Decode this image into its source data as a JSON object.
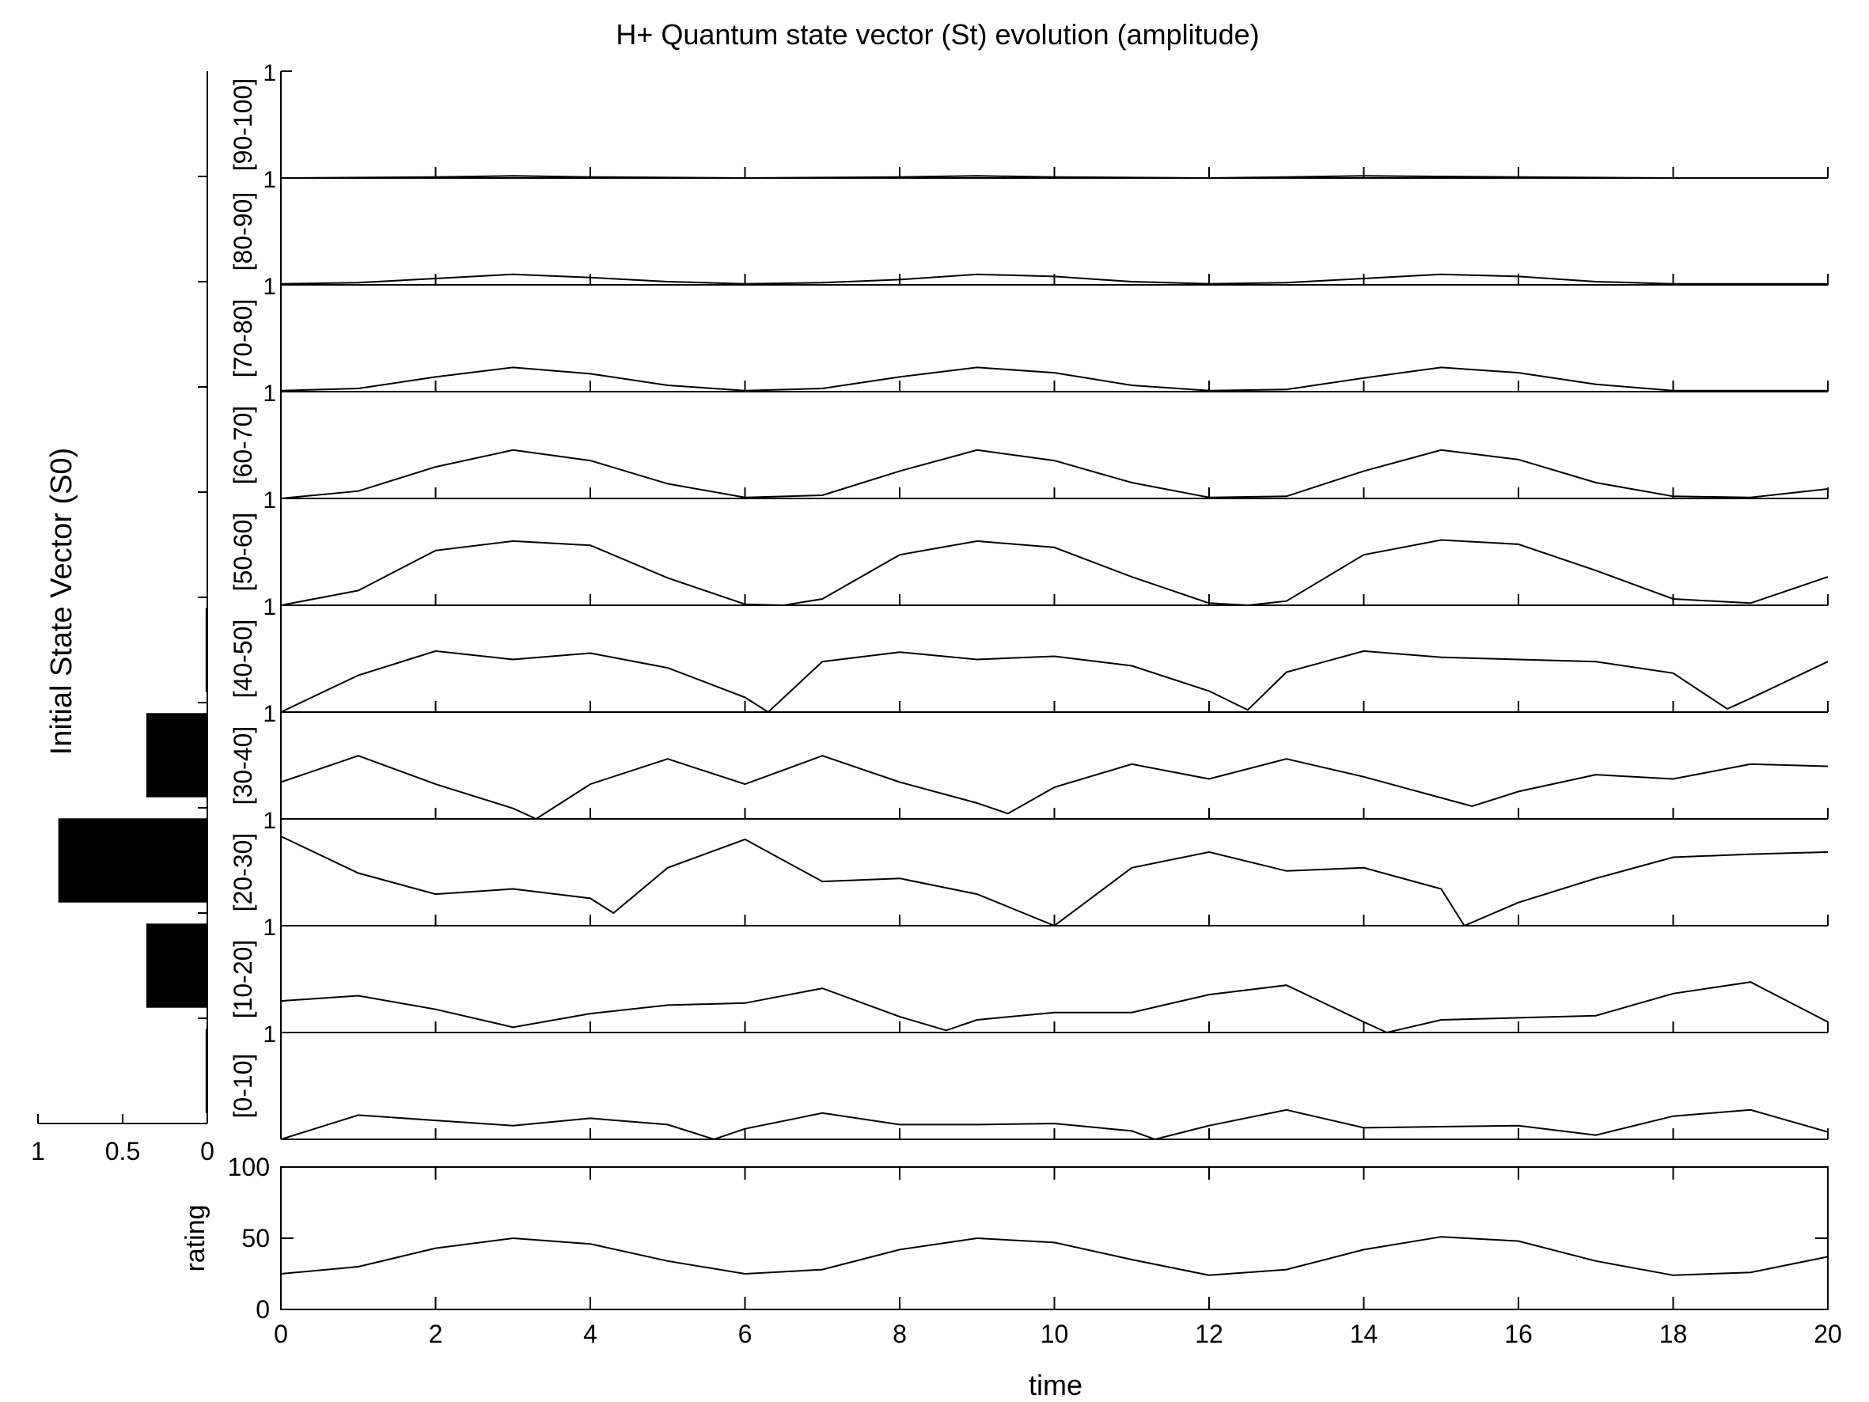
{
  "chart_data": {
    "type": "line",
    "title": "H+ Quantum state vector (St) evolution (amplitude)",
    "xlabel": "time",
    "xlim": [
      0,
      20
    ],
    "xticks": [
      0,
      2,
      4,
      6,
      8,
      10,
      12,
      14,
      16,
      18,
      20
    ],
    "panel_ylim": [
      0,
      1
    ],
    "panel_ytick_label": "1",
    "panels": [
      {
        "name": "[90-100]",
        "x": [
          0,
          2,
          3,
          4,
          6,
          8,
          9,
          10,
          12,
          13,
          14,
          16,
          18,
          20
        ],
        "values": [
          0,
          0.01,
          0.02,
          0.01,
          0,
          0.01,
          0.02,
          0.01,
          0,
          0.01,
          0.02,
          0.01,
          0,
          0
        ]
      },
      {
        "name": "[80-90]",
        "x": [
          0,
          1,
          2,
          3,
          4,
          5,
          6,
          7,
          8,
          9,
          10,
          11,
          12,
          13,
          14,
          15,
          16,
          17,
          18,
          19,
          20
        ],
        "values": [
          0.01,
          0.02,
          0.06,
          0.1,
          0.07,
          0.03,
          0.01,
          0.02,
          0.05,
          0.1,
          0.08,
          0.03,
          0.01,
          0.02,
          0.06,
          0.1,
          0.08,
          0.03,
          0.01,
          0.01,
          0.01
        ]
      },
      {
        "name": "[70-80]",
        "x": [
          0,
          1,
          2,
          3,
          4,
          5,
          6,
          7,
          8,
          9,
          10,
          11,
          12,
          13,
          14,
          15,
          16,
          17,
          18,
          19,
          20
        ],
        "values": [
          0.01,
          0.03,
          0.14,
          0.23,
          0.17,
          0.06,
          0.01,
          0.03,
          0.14,
          0.23,
          0.18,
          0.06,
          0.01,
          0.02,
          0.13,
          0.23,
          0.18,
          0.07,
          0.01,
          0.01,
          0.01
        ]
      },
      {
        "name": "[60-70]",
        "x": [
          0,
          1,
          2,
          3,
          4,
          5,
          6,
          7,
          8,
          9,
          10,
          11,
          12,
          13,
          14,
          15,
          16,
          17,
          18,
          19,
          20
        ],
        "values": [
          0,
          0.07,
          0.3,
          0.46,
          0.36,
          0.14,
          0.01,
          0.03,
          0.26,
          0.46,
          0.36,
          0.15,
          0.01,
          0.02,
          0.26,
          0.46,
          0.37,
          0.15,
          0.02,
          0.01,
          0.09
        ]
      },
      {
        "name": "[50-60]",
        "x": [
          0,
          1,
          2,
          3,
          4,
          5,
          6,
          6.5,
          7,
          8,
          9,
          10,
          11,
          12,
          12.5,
          13,
          14,
          15,
          16,
          17,
          18,
          19,
          20
        ],
        "values": [
          0,
          0.14,
          0.52,
          0.61,
          0.57,
          0.26,
          0.01,
          0,
          0.06,
          0.48,
          0.61,
          0.55,
          0.27,
          0.02,
          0,
          0.04,
          0.48,
          0.62,
          0.58,
          0.33,
          0.06,
          0.02,
          0.27
        ]
      },
      {
        "name": "[40-50]",
        "x": [
          0,
          1,
          2,
          3,
          4,
          5,
          6,
          6.3,
          7,
          8,
          9,
          10,
          11,
          12,
          12.5,
          13,
          14,
          15,
          16,
          17,
          18,
          18.7,
          19,
          20
        ],
        "values": [
          0,
          0.35,
          0.58,
          0.5,
          0.56,
          0.42,
          0.14,
          0,
          0.48,
          0.57,
          0.5,
          0.53,
          0.44,
          0.2,
          0.02,
          0.38,
          0.58,
          0.52,
          0.5,
          0.48,
          0.37,
          0.03,
          0.13,
          0.48
        ]
      },
      {
        "name": "[30-40]",
        "x": [
          0,
          1,
          2,
          3,
          3.3,
          4,
          5,
          6,
          7,
          8,
          9,
          9.4,
          10,
          11,
          12,
          13,
          14,
          15,
          15.4,
          16,
          17,
          18,
          19,
          20
        ],
        "values": [
          0.35,
          0.6,
          0.33,
          0.1,
          0,
          0.33,
          0.57,
          0.33,
          0.6,
          0.35,
          0.15,
          0.05,
          0.3,
          0.52,
          0.38,
          0.57,
          0.4,
          0.2,
          0.12,
          0.26,
          0.42,
          0.38,
          0.52,
          0.5
        ]
      },
      {
        "name": "[20-30]",
        "x": [
          0,
          1,
          2,
          3,
          4,
          4.3,
          5,
          6,
          7,
          8,
          9,
          10,
          11,
          12,
          13,
          14,
          15,
          15.3,
          16,
          17,
          18,
          19,
          20
        ],
        "values": [
          0.85,
          0.5,
          0.3,
          0.35,
          0.26,
          0.12,
          0.55,
          0.82,
          0.42,
          0.45,
          0.3,
          0,
          0.55,
          0.7,
          0.52,
          0.55,
          0.35,
          0,
          0.22,
          0.45,
          0.65,
          0.68,
          0.7
        ]
      },
      {
        "name": "[10-20]",
        "x": [
          0,
          1,
          2,
          3,
          4,
          5,
          6,
          7,
          8,
          8.6,
          9,
          10,
          11,
          12,
          13,
          14,
          14.3,
          15,
          16,
          17,
          18,
          19,
          20
        ],
        "values": [
          0.3,
          0.35,
          0.22,
          0.05,
          0.18,
          0.26,
          0.28,
          0.42,
          0.15,
          0.02,
          0.12,
          0.19,
          0.19,
          0.36,
          0.45,
          0.1,
          0,
          0.12,
          0.14,
          0.16,
          0.37,
          0.48,
          0.1
        ]
      },
      {
        "name": "[0-10]",
        "x": [
          0,
          1,
          2,
          3,
          4,
          5,
          5.6,
          6,
          7,
          8,
          9,
          10,
          11,
          11.3,
          12,
          13,
          14,
          15,
          16,
          17,
          18,
          19,
          20
        ],
        "values": [
          0,
          0.23,
          0.18,
          0.13,
          0.2,
          0.14,
          0,
          0.1,
          0.25,
          0.14,
          0.14,
          0.15,
          0.08,
          0,
          0.13,
          0.28,
          0.11,
          0.12,
          0.13,
          0.04,
          0.22,
          0.28,
          0.07
        ]
      }
    ],
    "rating": {
      "ylabel": "rating",
      "ylim": [
        0,
        100
      ],
      "yticks": [
        0,
        50,
        100
      ],
      "x": [
        0,
        1,
        2,
        3,
        4,
        5,
        6,
        7,
        8,
        9,
        10,
        11,
        12,
        13,
        14,
        15,
        16,
        17,
        18,
        19,
        20
      ],
      "values": [
        25,
        30,
        43,
        50,
        46,
        34,
        25,
        28,
        42,
        50,
        47,
        35,
        24,
        28,
        42,
        51,
        48,
        34,
        24,
        26,
        37
      ]
    },
    "initial_state": {
      "ylabel": "Initial State Vector (S0)",
      "xlim": [
        1,
        0
      ],
      "xticks": [
        1,
        0.5,
        0
      ],
      "xtick_labels": [
        "1",
        "0.5",
        "0"
      ],
      "values": [
        0.01,
        0.36,
        0.88,
        0.36,
        0.01,
        0,
        0,
        0,
        0,
        0
      ]
    }
  }
}
